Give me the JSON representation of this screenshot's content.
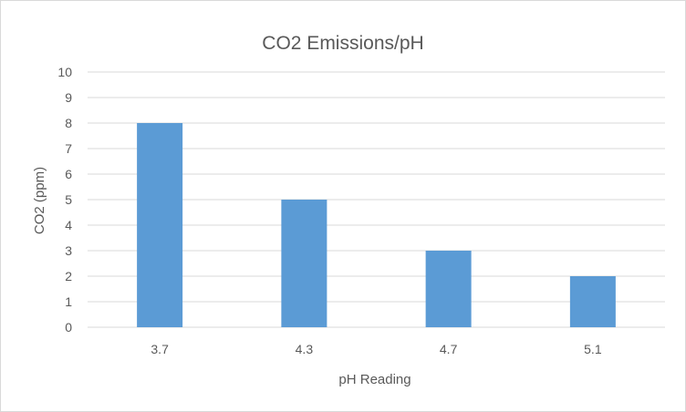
{
  "chart_data": {
    "type": "bar",
    "title": "CO2 Emissions/pH",
    "xlabel": "pH Reading",
    "ylabel": "CO2 (ppm)",
    "categories": [
      "3.7",
      "4.3",
      "4.7",
      "5.1"
    ],
    "values": [
      8,
      5,
      3,
      2
    ],
    "ylim": [
      0,
      10
    ],
    "yticks": [
      "0",
      "1",
      "2",
      "3",
      "4",
      "5",
      "6",
      "7",
      "8",
      "9",
      "10"
    ],
    "grid": true,
    "legend": "none",
    "bar_color": "#5b9bd5"
  }
}
